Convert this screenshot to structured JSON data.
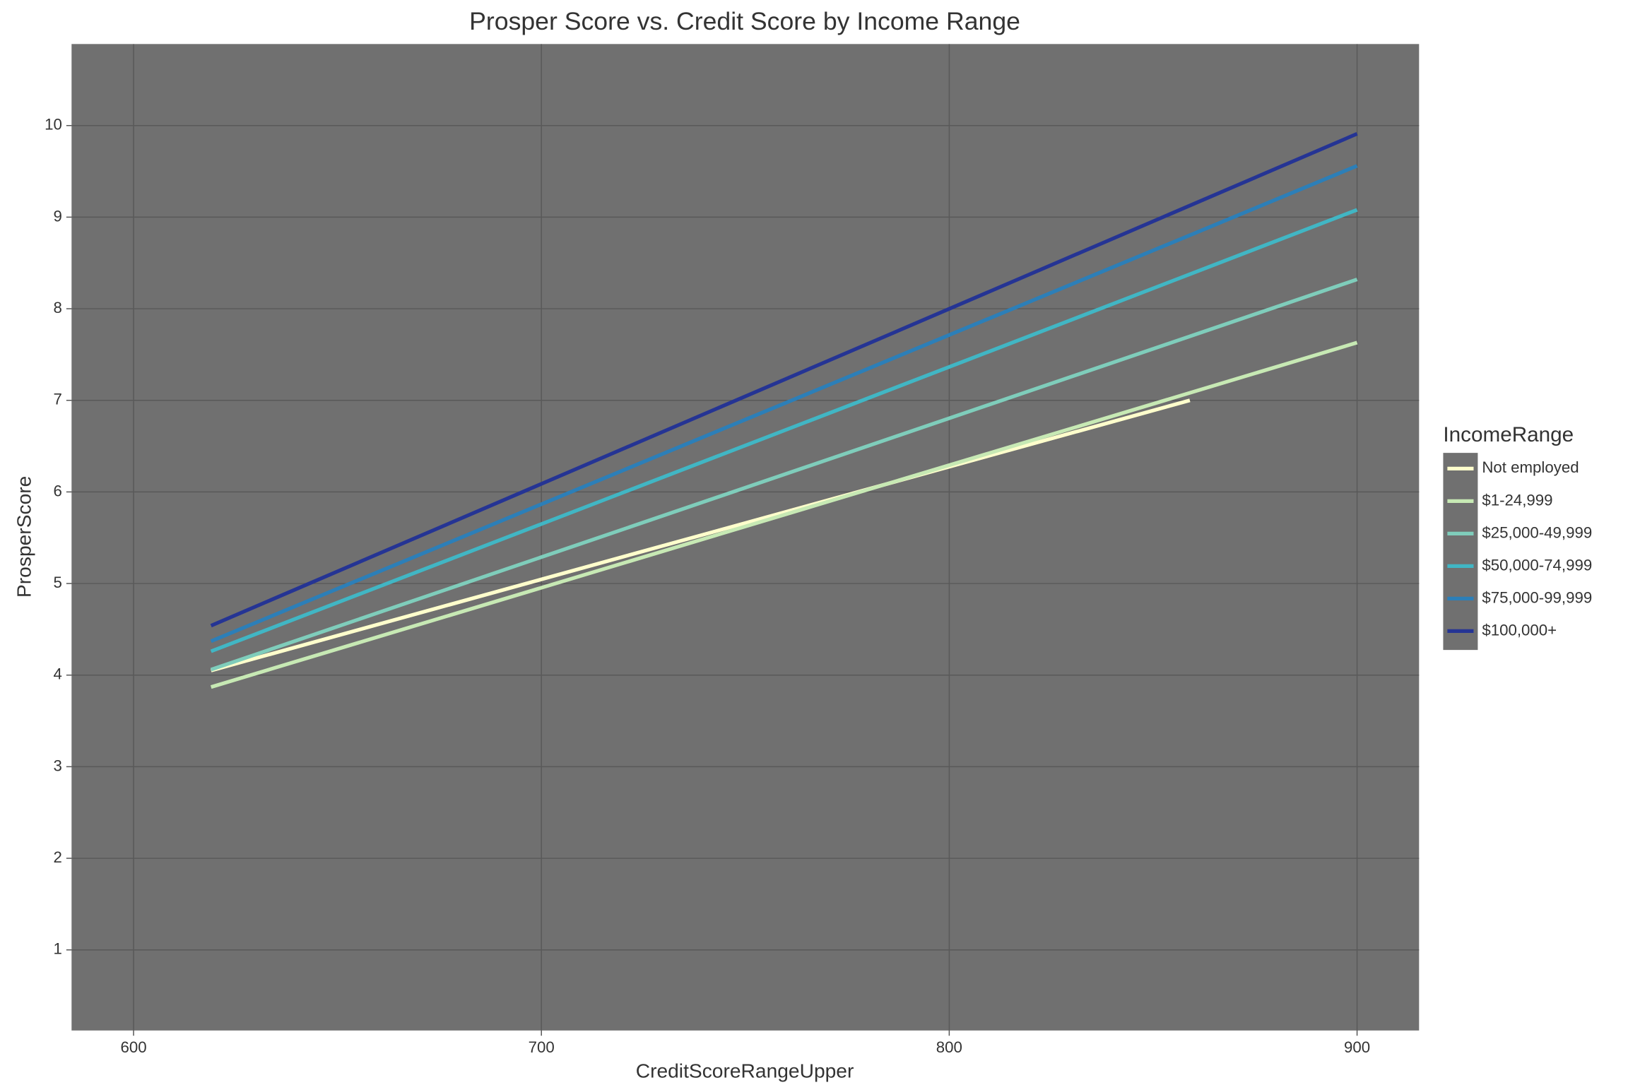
{
  "chart_data": {
    "type": "line",
    "title": "Prosper Score vs. Credit Score by Income Range",
    "x_label": "CreditScoreRangeUpper",
    "y_label": "ProsperScore",
    "legend_title": "IncomeRange",
    "legend_position": "right",
    "grid": true,
    "xlim": [
      584.8,
      915.2
    ],
    "ylim": [
      0.12,
      10.89
    ],
    "xticks": [
      600,
      700,
      800,
      900
    ],
    "yticks": [
      1,
      2,
      3,
      4,
      5,
      6,
      7,
      8,
      9,
      10
    ],
    "series": [
      {
        "name": "Not employed",
        "color": "#ffffcc",
        "x": [
          619,
          859
        ],
        "values": [
          4.05,
          7.0
        ]
      },
      {
        "name": "$1-24,999",
        "color": "#c7e9b4",
        "x": [
          619,
          900
        ],
        "values": [
          3.87,
          7.63
        ]
      },
      {
        "name": "$25,000-49,999",
        "color": "#7fcdbb",
        "x": [
          619,
          900
        ],
        "values": [
          4.06,
          8.32
        ]
      },
      {
        "name": "$50,000-74,999",
        "color": "#41b6c4",
        "x": [
          619,
          900
        ],
        "values": [
          4.26,
          9.08
        ]
      },
      {
        "name": "$75,000-99,999",
        "color": "#2c7fb8",
        "x": [
          619,
          900
        ],
        "values": [
          4.37,
          9.56
        ]
      },
      {
        "name": "$100,000+",
        "color": "#253494",
        "x": [
          619,
          900
        ],
        "values": [
          4.54,
          9.91
        ]
      }
    ]
  }
}
